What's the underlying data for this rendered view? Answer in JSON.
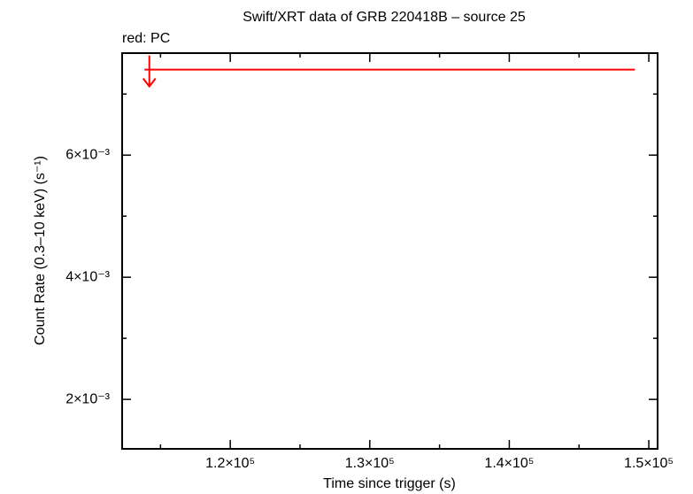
{
  "chart_data": {
    "type": "scatter",
    "title": "Swift/XRT data of GRB 220418B – source 25",
    "annotation": "red: PC",
    "x_label": "Time since trigger (s)",
    "y_label": "Count Rate (0.3–10 keV) (s⁻¹)",
    "xlim": [
      112250,
      150630
    ],
    "ylim": [
      0.00119,
      0.00767
    ],
    "xticks": [
      {
        "value": 120000,
        "label": "1.2×10⁵"
      },
      {
        "value": 130000,
        "label": "1.3×10⁵"
      },
      {
        "value": 140000,
        "label": "1.4×10⁵"
      },
      {
        "value": 150000,
        "label": "1.5×10⁵"
      }
    ],
    "xticks_minor": [
      115000,
      125000,
      135000,
      145000
    ],
    "yticks": [
      {
        "value": 0.002,
        "label": "2×10⁻³"
      },
      {
        "value": 0.004,
        "label": "4×10⁻³"
      },
      {
        "value": 0.006,
        "label": "6×10⁻³"
      }
    ],
    "yticks_minor": [
      0.003,
      0.005,
      0.007
    ],
    "series": [
      {
        "color": "#ff0000",
        "upper_limit": true,
        "x": [
          114200
        ],
        "xerr_minus": [
          350
        ],
        "xerr_plus": [
          34800
        ],
        "values": [
          0.0074
        ]
      }
    ]
  }
}
